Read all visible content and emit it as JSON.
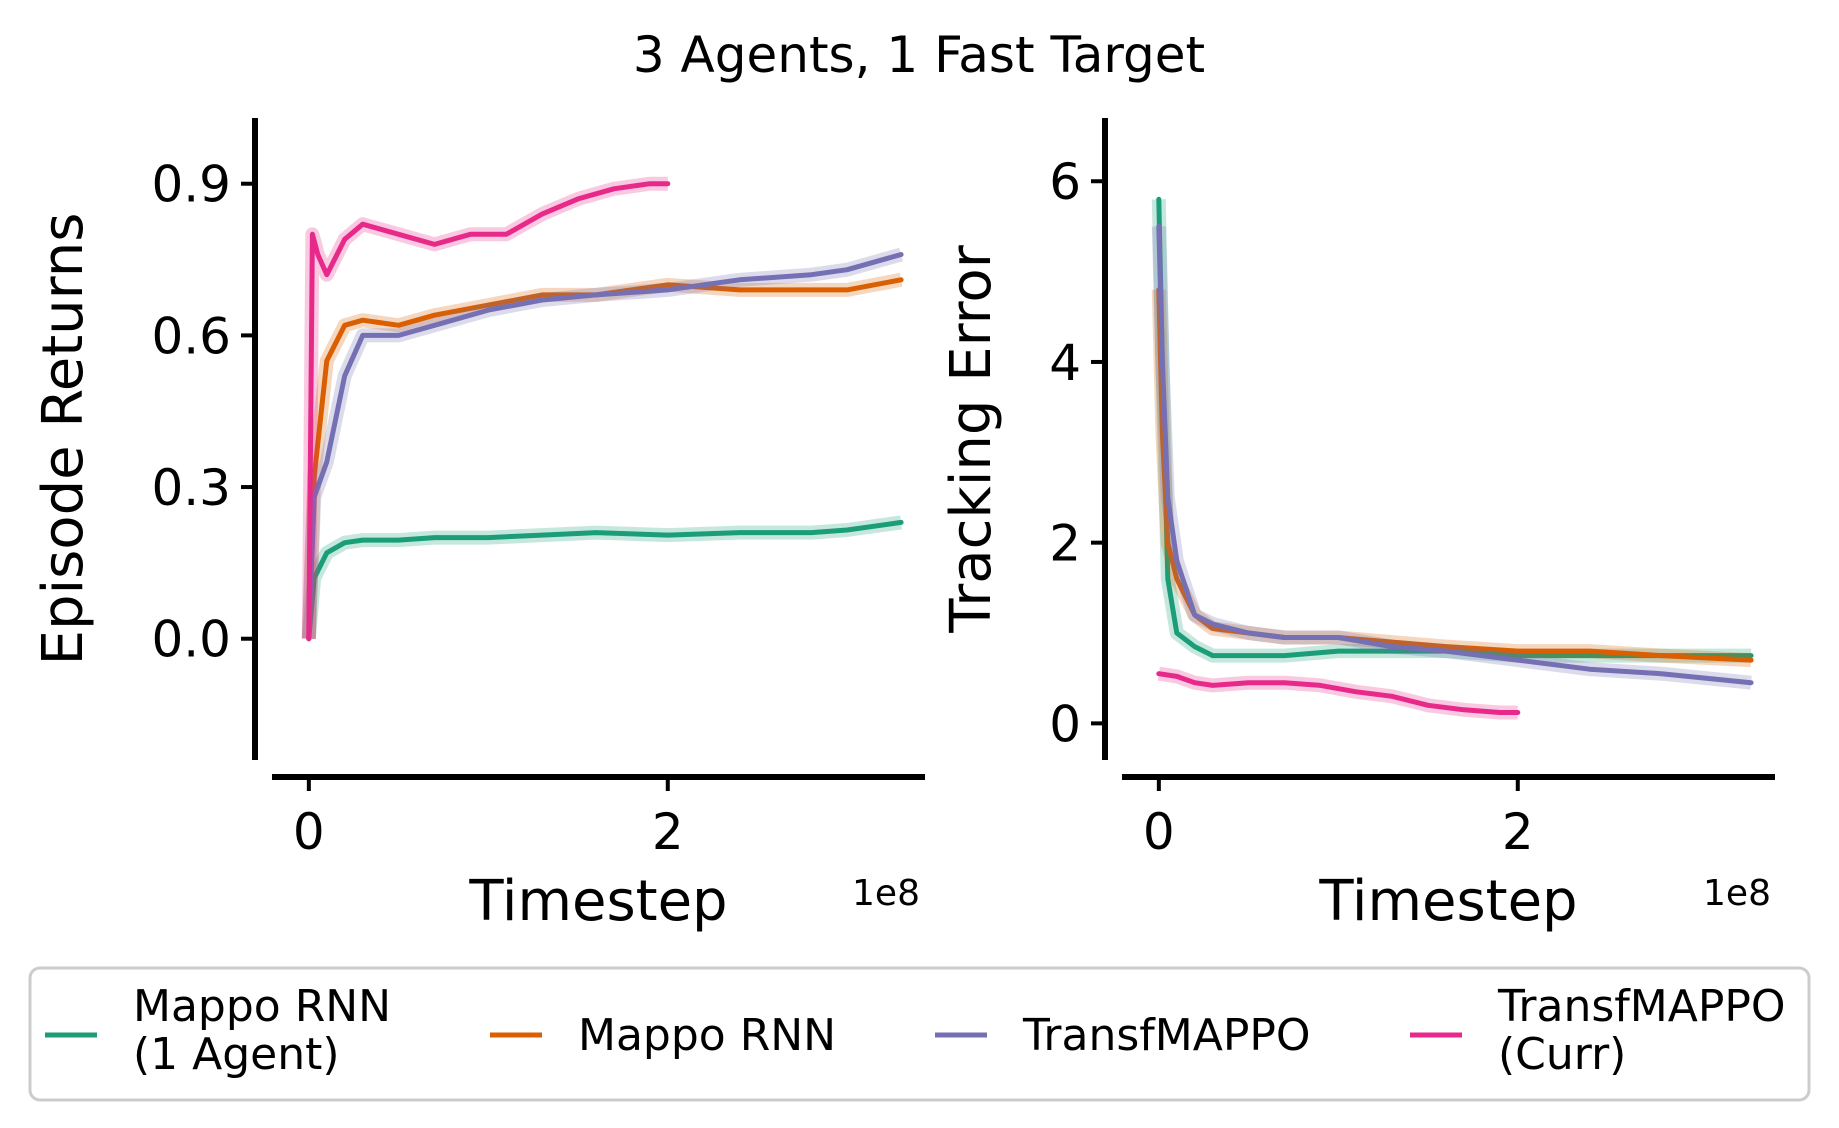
{
  "figure": {
    "title": "3 Agents, 1 Fast Target"
  },
  "colors": {
    "mappo_rnn_1agent": "#1b9e77",
    "mappo_rnn": "#d95f02",
    "transfmappo": "#7570b3",
    "transfmappo_curr": "#e7298a"
  },
  "legend": {
    "items": [
      {
        "key": "mappo_rnn_1agent",
        "lines": [
          "Mappo RNN",
          "(1 Agent)"
        ]
      },
      {
        "key": "mappo_rnn",
        "lines": [
          "Mappo RNN"
        ]
      },
      {
        "key": "transfmappo",
        "lines": [
          "TransfMAPPO"
        ]
      },
      {
        "key": "transfmappo_curr",
        "lines": [
          "TransfMAPPO",
          "(Curr)"
        ]
      }
    ]
  },
  "chart_data": [
    {
      "type": "line",
      "ylabel": "Episode Returns",
      "xlabel": "Timestep",
      "x_offset_label": "1e8",
      "xlim": [
        -0.3,
        3.45
      ],
      "ylim": [
        -0.23,
        1.03
      ],
      "xticks": [
        {
          "value": 0,
          "label": "0"
        },
        {
          "value": 2,
          "label": "2"
        }
      ],
      "yticks": [
        {
          "value": 0.0,
          "label": "0.0"
        },
        {
          "value": 0.3,
          "label": "0.3"
        },
        {
          "value": 0.6,
          "label": "0.6"
        },
        {
          "value": 0.9,
          "label": "0.9"
        }
      ],
      "grid": false,
      "series": [
        {
          "key": "mappo_rnn_1agent",
          "x": [
            0,
            0.03,
            0.1,
            0.2,
            0.3,
            0.5,
            0.7,
            1.0,
            1.3,
            1.6,
            2.0,
            2.4,
            2.8,
            3.0,
            3.3
          ],
          "y": [
            0.0,
            0.12,
            0.17,
            0.19,
            0.195,
            0.195,
            0.2,
            0.2,
            0.205,
            0.21,
            0.205,
            0.21,
            0.21,
            0.215,
            0.23
          ]
        },
        {
          "key": "mappo_rnn",
          "x": [
            0,
            0.03,
            0.1,
            0.2,
            0.3,
            0.5,
            0.7,
            1.0,
            1.3,
            1.6,
            2.0,
            2.4,
            2.8,
            3.0,
            3.3
          ],
          "y": [
            0.0,
            0.32,
            0.55,
            0.62,
            0.63,
            0.62,
            0.64,
            0.66,
            0.68,
            0.68,
            0.7,
            0.69,
            0.69,
            0.69,
            0.71
          ]
        },
        {
          "key": "transfmappo",
          "x": [
            0,
            0.03,
            0.1,
            0.2,
            0.3,
            0.5,
            0.7,
            1.0,
            1.3,
            1.6,
            2.0,
            2.4,
            2.8,
            3.0,
            3.3
          ],
          "y": [
            0.0,
            0.28,
            0.35,
            0.52,
            0.6,
            0.6,
            0.62,
            0.65,
            0.67,
            0.68,
            0.69,
            0.71,
            0.72,
            0.73,
            0.76
          ]
        },
        {
          "key": "transfmappo_curr",
          "x": [
            0,
            0.02,
            0.05,
            0.1,
            0.2,
            0.3,
            0.5,
            0.7,
            0.9,
            1.1,
            1.3,
            1.5,
            1.7,
            1.9,
            2.0
          ],
          "y": [
            0.0,
            0.8,
            0.76,
            0.72,
            0.79,
            0.82,
            0.8,
            0.78,
            0.8,
            0.8,
            0.84,
            0.87,
            0.89,
            0.9,
            0.9
          ]
        }
      ]
    },
    {
      "type": "line",
      "ylabel": "Tracking Error",
      "xlabel": "Timestep",
      "x_offset_label": "1e8",
      "xlim": [
        -0.3,
        3.45
      ],
      "ylim": [
        -0.35,
        6.7
      ],
      "xticks": [
        {
          "value": 0,
          "label": "0"
        },
        {
          "value": 2,
          "label": "2"
        }
      ],
      "yticks": [
        {
          "value": 0,
          "label": "0"
        },
        {
          "value": 2,
          "label": "2"
        },
        {
          "value": 4,
          "label": "4"
        },
        {
          "value": 6,
          "label": "6"
        }
      ],
      "grid": false,
      "series": [
        {
          "key": "mappo_rnn_1agent",
          "x": [
            0,
            0.02,
            0.05,
            0.1,
            0.2,
            0.3,
            0.5,
            0.7,
            1.0,
            1.3,
            1.6,
            2.0,
            2.4,
            2.8,
            3.3
          ],
          "y": [
            5.8,
            4.0,
            1.6,
            1.0,
            0.85,
            0.75,
            0.75,
            0.75,
            0.8,
            0.8,
            0.8,
            0.75,
            0.75,
            0.75,
            0.75
          ]
        },
        {
          "key": "mappo_rnn",
          "x": [
            0,
            0.02,
            0.05,
            0.1,
            0.2,
            0.3,
            0.5,
            0.7,
            1.0,
            1.3,
            1.6,
            2.0,
            2.4,
            2.8,
            3.3
          ],
          "y": [
            4.8,
            3.2,
            2.0,
            1.6,
            1.2,
            1.05,
            1.0,
            0.95,
            0.95,
            0.9,
            0.85,
            0.8,
            0.8,
            0.75,
            0.7
          ]
        },
        {
          "key": "transfmappo",
          "x": [
            0,
            0.02,
            0.05,
            0.1,
            0.2,
            0.3,
            0.5,
            0.7,
            1.0,
            1.3,
            1.6,
            2.0,
            2.4,
            2.8,
            3.3
          ],
          "y": [
            5.5,
            4.0,
            2.5,
            1.8,
            1.2,
            1.1,
            1.0,
            0.95,
            0.95,
            0.85,
            0.8,
            0.7,
            0.6,
            0.55,
            0.45
          ]
        },
        {
          "key": "transfmappo_curr",
          "x": [
            0,
            0.1,
            0.2,
            0.3,
            0.5,
            0.7,
            0.9,
            1.1,
            1.3,
            1.5,
            1.7,
            1.9,
            2.0
          ],
          "y": [
            0.55,
            0.52,
            0.45,
            0.42,
            0.45,
            0.45,
            0.42,
            0.35,
            0.3,
            0.2,
            0.15,
            0.12,
            0.12
          ]
        }
      ]
    }
  ]
}
